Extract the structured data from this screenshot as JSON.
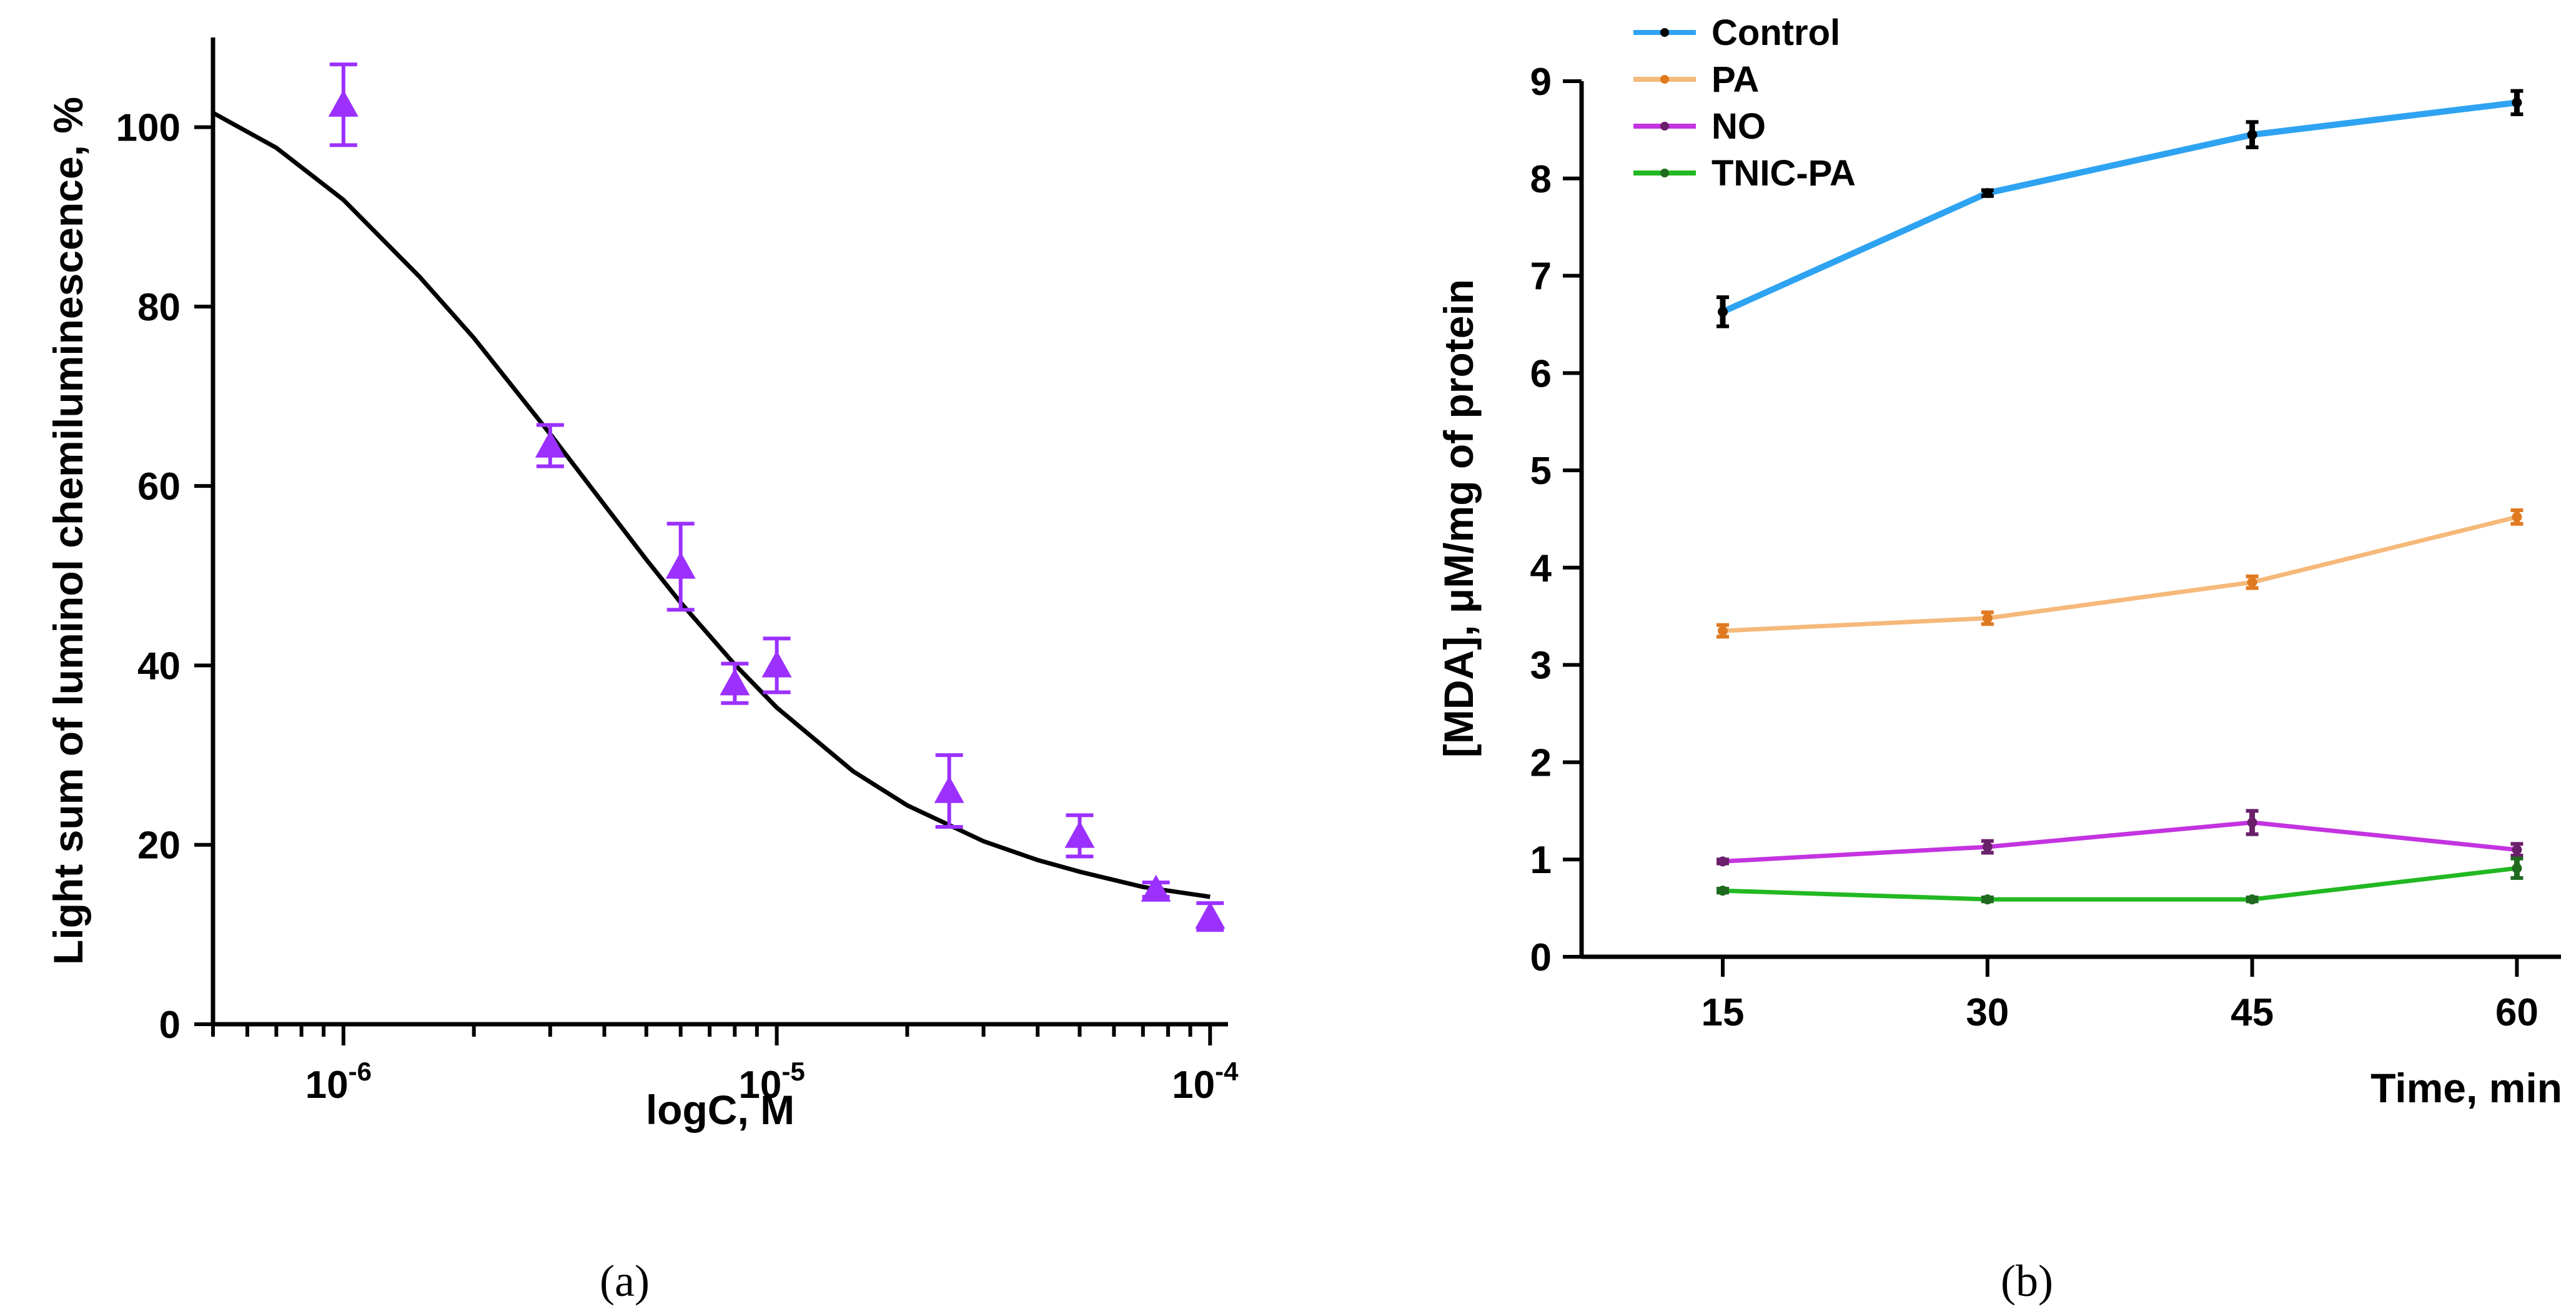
{
  "panels": [
    {
      "label": "(a)"
    },
    {
      "label": "(b)"
    }
  ],
  "chart_data": [
    {
      "type": "scatter",
      "xlabel": "logC, M",
      "ylabel": "Light sum of luminol chemiluminescence, %",
      "x_scale": "log",
      "xlim": [
        5e-07,
        0.00011
      ],
      "ylim": [
        0,
        110
      ],
      "x_ticks": [
        {
          "value": 1e-06,
          "base": "10",
          "exp": "-6"
        },
        {
          "value": 1e-05,
          "base": "10",
          "exp": "-5"
        },
        {
          "value": 0.0001,
          "base": "10",
          "exp": "-4"
        }
      ],
      "y_ticks": [
        0,
        20,
        40,
        60,
        80,
        100
      ],
      "marker_color": "#9b30ff",
      "fit_color": "#000000",
      "points": [
        {
          "x": 1e-06,
          "y": 102.5,
          "err": 4.5
        },
        {
          "x": 3e-06,
          "y": 64.5,
          "err": 2.3
        },
        {
          "x": 6e-06,
          "y": 51.0,
          "err": 4.8
        },
        {
          "x": 8e-06,
          "y": 38.0,
          "err": 2.2
        },
        {
          "x": 1e-05,
          "y": 40.0,
          "err": 3.0
        },
        {
          "x": 2.5e-05,
          "y": 26.0,
          "err": 4.0
        },
        {
          "x": 5e-05,
          "y": 21.0,
          "err": 2.3
        },
        {
          "x": 7.5e-05,
          "y": 15.0,
          "err": 0.8
        },
        {
          "x": 0.0001,
          "y": 12.0,
          "err": 1.5
        }
      ],
      "fit_curve": {
        "x": [
          5e-07,
          7e-07,
          1e-06,
          1.5e-06,
          2e-06,
          3e-06,
          4e-06,
          5e-06,
          6e-06,
          8e-06,
          1e-05,
          1.5e-05,
          2e-05,
          3e-05,
          4e-05,
          5e-05,
          7e-05,
          0.0001
        ],
        "y": [
          101.6,
          97.7,
          91.9,
          83.3,
          76.5,
          65.8,
          57.9,
          51.8,
          47.0,
          40.1,
          35.3,
          28.2,
          24.4,
          20.4,
          18.3,
          17.0,
          15.3,
          14.2
        ]
      }
    },
    {
      "type": "line",
      "xlabel": "Time, min",
      "ylabel": "[MDA], μM/mg of protein",
      "categories": [
        15,
        30,
        45,
        60
      ],
      "xlim": [
        7,
        62.5
      ],
      "ylim": [
        0,
        9
      ],
      "y_ticks": [
        0,
        1,
        2,
        3,
        4,
        5,
        6,
        7,
        8,
        9
      ],
      "legend_position": "top-left",
      "series": [
        {
          "name": "Control",
          "color": "#2ea3f2",
          "err_color": "#000000",
          "values": [
            6.63,
            7.85,
            8.45,
            8.78
          ],
          "errors": [
            0.15,
            0.03,
            0.13,
            0.12
          ]
        },
        {
          "name": "PA",
          "color": "#f5b97a",
          "err_color": "#e07a20",
          "values": [
            3.35,
            3.48,
            3.85,
            4.52
          ],
          "errors": [
            0.06,
            0.06,
            0.06,
            0.07
          ]
        },
        {
          "name": "NO",
          "color": "#c433e0",
          "err_color": "#6a1f6a",
          "values": [
            0.98,
            1.13,
            1.38,
            1.1
          ],
          "errors": [
            0.02,
            0.06,
            0.12,
            0.06
          ]
        },
        {
          "name": "TNIC-PA",
          "color": "#22b822",
          "err_color": "#1f6a1f",
          "values": [
            0.68,
            0.59,
            0.59,
            0.91
          ],
          "errors": [
            0.02,
            0.02,
            0.02,
            0.1
          ]
        }
      ]
    }
  ]
}
